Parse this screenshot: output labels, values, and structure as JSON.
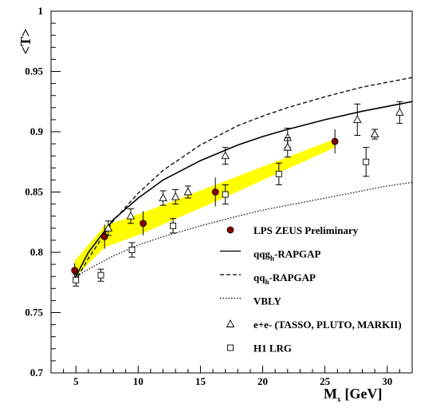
{
  "chart_data": {
    "type": "scatter",
    "xlabel": "M",
    "xlabel_sub": "x",
    "xlabel_unit": "[GeV]",
    "ylabel": "<T>",
    "xlim": [
      3,
      32
    ],
    "ylim": [
      0.7,
      1.0
    ],
    "x_ticks": [
      5,
      10,
      15,
      20,
      25,
      30
    ],
    "y_ticks": [
      0.7,
      0.75,
      0.8,
      0.85,
      0.9,
      0.95,
      1.0
    ],
    "y_tick_labels": [
      "0.7",
      "0.75",
      "0.8",
      "0.85",
      "0.9",
      "0.95",
      "1"
    ],
    "legend_position": "bottom-right",
    "series": [
      {
        "name": "LPS ZEUS Preliminary",
        "marker": "filled-circle",
        "points": [
          {
            "x": 4.9,
            "y": 0.785,
            "err": 0.006
          },
          {
            "x": 7.3,
            "y": 0.813,
            "err": 0.01
          },
          {
            "x": 10.4,
            "y": 0.824,
            "err": 0.01
          },
          {
            "x": 16.2,
            "y": 0.85,
            "err": 0.012
          },
          {
            "x": 25.8,
            "y": 0.892,
            "err": 0.01
          }
        ]
      },
      {
        "name": "qqg",
        "name_sub": "h",
        "name_suffix": "-RAPGAP",
        "line": "solid",
        "x": [
          4.9,
          6,
          8,
          10,
          12,
          15,
          18,
          20,
          22,
          25,
          28,
          30,
          32
        ],
        "y": [
          0.778,
          0.8,
          0.827,
          0.845,
          0.86,
          0.876,
          0.889,
          0.896,
          0.902,
          0.91,
          0.917,
          0.921,
          0.925
        ]
      },
      {
        "name": "qq",
        "name_sub": "h",
        "name_suffix": "-RAPGAP",
        "line": "dashed",
        "x": [
          4.9,
          6,
          8,
          10,
          12,
          15,
          18,
          20,
          22,
          25,
          28,
          30,
          32
        ],
        "y": [
          0.775,
          0.795,
          0.826,
          0.849,
          0.868,
          0.889,
          0.905,
          0.913,
          0.92,
          0.929,
          0.937,
          0.941,
          0.945
        ]
      },
      {
        "name": "VBLY",
        "line": "dotted",
        "x": [
          4.9,
          6,
          8,
          10,
          12,
          15,
          18,
          20,
          22,
          25,
          28,
          30,
          32
        ],
        "y": [
          0.779,
          0.786,
          0.797,
          0.806,
          0.813,
          0.822,
          0.83,
          0.835,
          0.839,
          0.845,
          0.851,
          0.855,
          0.858
        ]
      },
      {
        "name": "e+e- (TASSO, PLUTO, MARKII)",
        "marker": "open-triangle",
        "points": [
          {
            "x": 7.6,
            "y": 0.82,
            "err": 0.006
          },
          {
            "x": 9.4,
            "y": 0.83,
            "err": 0.006
          },
          {
            "x": 12.0,
            "y": 0.845,
            "err": 0.006
          },
          {
            "x": 13.0,
            "y": 0.846,
            "err": 0.006
          },
          {
            "x": 14.0,
            "y": 0.85,
            "err": 0.005
          },
          {
            "x": 17.0,
            "y": 0.88,
            "err": 0.007
          },
          {
            "x": 22.0,
            "y": 0.895,
            "err": 0.008
          },
          {
            "x": 22.0,
            "y": 0.887,
            "err": 0.008
          },
          {
            "x": 27.6,
            "y": 0.91,
            "err": 0.013
          },
          {
            "x": 29.0,
            "y": 0.898,
            "err": 0.004
          },
          {
            "x": 31.0,
            "y": 0.916,
            "err": 0.009
          }
        ]
      },
      {
        "name": "H1 LRG",
        "marker": "open-square",
        "points": [
          {
            "x": 5.0,
            "y": 0.777,
            "err": 0.005
          },
          {
            "x": 7.0,
            "y": 0.781,
            "err": 0.005
          },
          {
            "x": 9.5,
            "y": 0.802,
            "err": 0.006
          },
          {
            "x": 12.8,
            "y": 0.822,
            "err": 0.006
          },
          {
            "x": 17.0,
            "y": 0.848,
            "err": 0.008
          },
          {
            "x": 21.3,
            "y": 0.865,
            "err": 0.009
          },
          {
            "x": 28.3,
            "y": 0.875,
            "err": 0.012
          }
        ]
      }
    ],
    "band": {
      "color": "#ffff00",
      "x": [
        4.9,
        7.3,
        10.4,
        16.2,
        25.8
      ],
      "y_low": [
        0.779,
        0.804,
        0.816,
        0.842,
        0.887
      ],
      "y_high": [
        0.793,
        0.822,
        0.833,
        0.856,
        0.894
      ]
    },
    "colors": {
      "zeus_marker": "#8b0000",
      "band": "#ffff00"
    }
  }
}
